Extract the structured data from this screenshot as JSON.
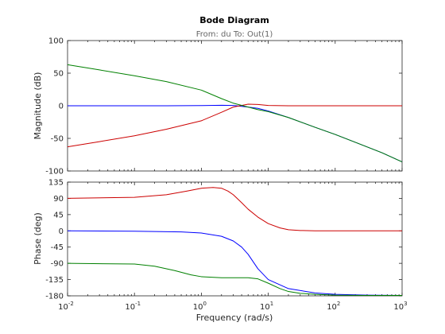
{
  "chart_data": {
    "type": "line",
    "title": "Bode Diagram",
    "subtitle": "From: du  To: Out(1)",
    "xlabel": "Frequency  (rad/s)",
    "xscale": "log",
    "xlim": [
      0.01,
      1000
    ],
    "x_ticks": [
      {
        "value": 0.01,
        "base": "10",
        "exp": "-2"
      },
      {
        "value": 0.1,
        "base": "10",
        "exp": "-1"
      },
      {
        "value": 1,
        "base": "10",
        "exp": "0"
      },
      {
        "value": 10,
        "base": "10",
        "exp": "1"
      },
      {
        "value": 100,
        "base": "10",
        "exp": "2"
      },
      {
        "value": 1000,
        "base": "10",
        "exp": "3"
      }
    ],
    "grid": false,
    "magnitude": {
      "ylabel": "Magnitude (dB)",
      "ylim": [
        -100,
        100
      ],
      "yticks": [
        -100,
        -50,
        0,
        50,
        100
      ],
      "series": [
        {
          "color": "#0000ff",
          "x": [
            0.01,
            0.1,
            0.3,
            1,
            2,
            3,
            5,
            7,
            10,
            20,
            50,
            100,
            200,
            500,
            1000
          ],
          "y": [
            0,
            0,
            0,
            0.3,
            0.8,
            0.5,
            -2,
            -4,
            -8,
            -18,
            -33,
            -44,
            -56,
            -72,
            -86
          ]
        },
        {
          "color": "#cc0000",
          "x": [
            0.01,
            0.03,
            0.1,
            0.3,
            1,
            2,
            3,
            5,
            7,
            10,
            20,
            50,
            100,
            1000
          ],
          "y": [
            -63,
            -55,
            -46,
            -36,
            -23,
            -10,
            -2,
            2.5,
            2,
            0.5,
            0,
            0,
            0,
            0
          ]
        },
        {
          "color": "#008000",
          "x": [
            0.01,
            0.03,
            0.1,
            0.3,
            1,
            2,
            3,
            5,
            7,
            10,
            20,
            50,
            100,
            200,
            500,
            1000
          ],
          "y": [
            63,
            55,
            46,
            37,
            24,
            11,
            4,
            -2,
            -6,
            -9,
            -18,
            -33,
            -44,
            -56,
            -72,
            -86
          ]
        }
      ]
    },
    "phase": {
      "ylabel": "Phase (deg)",
      "ylim": [
        -180,
        135
      ],
      "yticks": [
        -180,
        -135,
        -90,
        -45,
        0,
        45,
        90,
        135
      ],
      "series": [
        {
          "color": "#0000ff",
          "x": [
            0.01,
            0.1,
            0.5,
            1,
            2,
            3,
            4,
            5,
            7,
            10,
            20,
            50,
            100,
            300,
            1000
          ],
          "y": [
            0,
            -1,
            -3,
            -6,
            -15,
            -28,
            -45,
            -65,
            -105,
            -135,
            -160,
            -172,
            -176,
            -178,
            -179
          ]
        },
        {
          "color": "#cc0000",
          "x": [
            0.01,
            0.1,
            0.3,
            0.6,
            1,
            1.5,
            2,
            2.5,
            3,
            4,
            5,
            7,
            10,
            15,
            20,
            30,
            50,
            100,
            1000
          ],
          "y": [
            90,
            93,
            100,
            110,
            118,
            120,
            118,
            110,
            100,
            78,
            60,
            38,
            20,
            8,
            3,
            1,
            0,
            0,
            0
          ]
        },
        {
          "color": "#008000",
          "x": [
            0.01,
            0.1,
            0.2,
            0.4,
            0.7,
            1,
            2,
            3,
            5,
            7,
            10,
            15,
            20,
            30,
            50,
            100,
            300,
            1000
          ],
          "y": [
            -90,
            -92,
            -98,
            -110,
            -122,
            -127,
            -130,
            -130,
            -130,
            -133,
            -145,
            -160,
            -168,
            -173,
            -176,
            -178,
            -179,
            -179
          ]
        }
      ]
    }
  }
}
